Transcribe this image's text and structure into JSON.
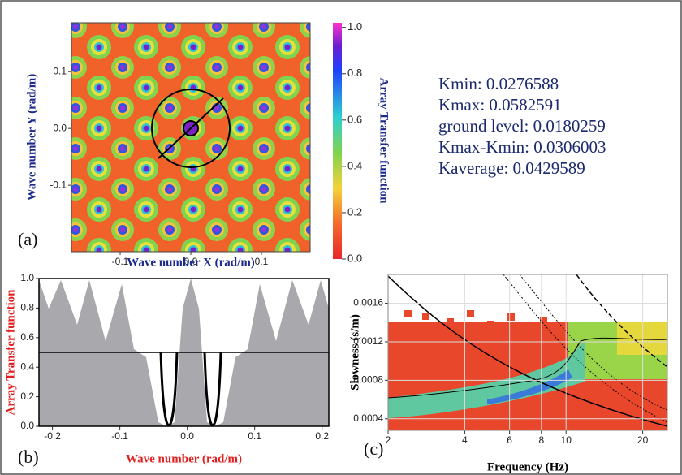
{
  "chart_data": [
    {
      "type": "heatmap",
      "panel_label": "(a)",
      "x_label": "Wave number X (rad/m)",
      "y_label": "Wave number Y (rad/m)",
      "xlim": [
        -0.169,
        0.169
      ],
      "ylim": [
        -0.217,
        0.186
      ],
      "xticks": [
        -0.1,
        {
          "value": 0,
          "label": "0.0"
        },
        0.1
      ],
      "yticks": [
        -0.1,
        {
          "value": 0,
          "label": "0.0"
        },
        0.1
      ],
      "colorbar": {
        "label": "Array Transfer function",
        "lim": [
          0,
          1.02
        ],
        "ticks": [
          {
            "value": 0,
            "label": "0.0"
          },
          0.2,
          0.4,
          0.6,
          0.8,
          {
            "value": 1,
            "label": "1.0"
          }
        ]
      },
      "annotations": [
        "Kmin: 0.0276588",
        "Kmax: 0.0582591",
        "ground level: 0.0180259",
        "Kmax-Kmin: 0.0306003",
        "Kaverage: 0.0429589"
      ]
    },
    {
      "type": "line",
      "panel_label": "(b)",
      "x_label": "Wave number  (rad/m)",
      "y_label": "Array Transfer function",
      "xlim": [
        -0.22,
        0.21
      ],
      "ylim": [
        0,
        1
      ],
      "xticks": [
        -0.2,
        -0.1,
        {
          "value": 0,
          "label": "0.0"
        },
        0.1,
        0.2
      ],
      "yticks": [
        {
          "value": 0,
          "label": "0.0"
        },
        0.2,
        0.4,
        0.6,
        0.8,
        {
          "value": 1,
          "label": "1.0"
        }
      ],
      "threshold": 0.5
    },
    {
      "type": "heatmap",
      "panel_label": "(c)",
      "x_label": "Frequency (Hz)",
      "y_label": "Slowness (s/m)",
      "xscale": "log",
      "xlim": [
        2,
        25
      ],
      "ylim": [
        0.00028,
        0.0019
      ],
      "xticks": [
        2,
        4,
        6,
        8,
        10,
        20
      ],
      "yticks": [
        0.0004,
        0.0008,
        0.0012,
        0.0016
      ],
      "grid": true
    }
  ]
}
